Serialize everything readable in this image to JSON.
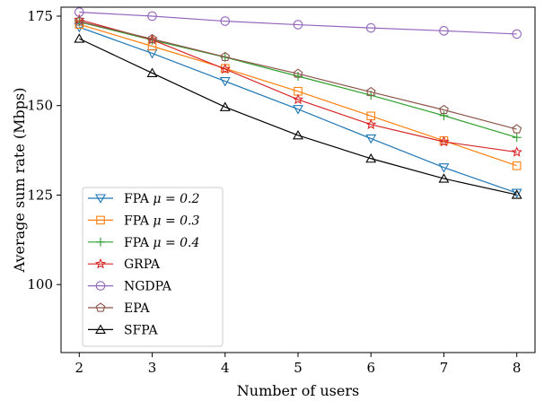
{
  "chart_data": {
    "type": "line",
    "title": "",
    "xlabel": "Number of users",
    "ylabel": "Average sum rate (Mbps)",
    "x": [
      2,
      3,
      4,
      5,
      6,
      7,
      8
    ],
    "xlim": [
      1.75,
      8.25
    ],
    "ylim": [
      81,
      177.5
    ],
    "yticks": [
      100,
      125,
      150,
      175
    ],
    "grid": false,
    "legend_position": "lower-left",
    "series": [
      {
        "name": "FPA μ = 0.2",
        "label_plain": "FPA ",
        "label_math": "μ = 0.2",
        "color": "#1f77b4",
        "marker": "triangle-down",
        "values": [
          171.9,
          164.6,
          156.8,
          149.0,
          140.8,
          132.7,
          125.6
        ]
      },
      {
        "name": "FPA μ = 0.3",
        "label_plain": "FPA ",
        "label_math": "μ = 0.3",
        "color": "#ff7f0e",
        "marker": "square",
        "values": [
          172.7,
          166.6,
          160.4,
          154.0,
          147.1,
          140.2,
          133.2
        ]
      },
      {
        "name": "FPA μ = 0.4",
        "label_plain": "FPA ",
        "label_math": "μ = 0.4",
        "color": "#2ca02c",
        "marker": "plus",
        "values": [
          173.4,
          168.3,
          163.5,
          158.2,
          152.9,
          147.2,
          141.1
        ]
      },
      {
        "name": "GRPA",
        "label_plain": "GRPA",
        "label_math": "",
        "color": "#d62728",
        "marker": "star",
        "values": [
          174.0,
          168.4,
          160.2,
          151.7,
          144.7,
          139.9,
          137.0
        ]
      },
      {
        "name": "NGDPA",
        "label_plain": "NGDPA",
        "label_math": "",
        "color": "#9467bd",
        "marker": "circle",
        "values": [
          176.1,
          175.0,
          173.6,
          172.6,
          171.7,
          170.9,
          170.0
        ]
      },
      {
        "name": "EPA",
        "label_plain": "EPA",
        "label_math": "",
        "color": "#8c564b",
        "marker": "pentagon",
        "values": [
          173.5,
          168.6,
          163.6,
          158.9,
          153.8,
          148.8,
          143.4
        ]
      },
      {
        "name": "SFPA",
        "label_plain": "SFPA",
        "label_math": "",
        "color": "#000000",
        "marker": "triangle-up",
        "values": [
          168.7,
          159.1,
          149.6,
          141.7,
          135.2,
          129.6,
          125.1
        ]
      }
    ]
  }
}
